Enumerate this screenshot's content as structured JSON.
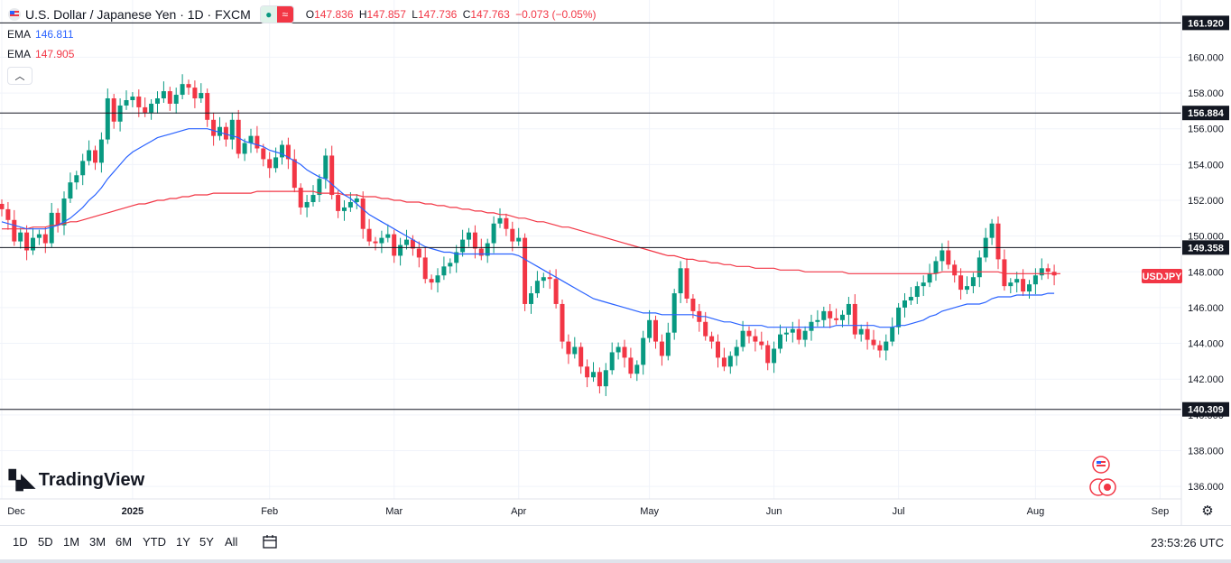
{
  "header": {
    "title": "U.S. Dollar / Japanese Yen · 1D · FXCM",
    "ohlc": [
      {
        "k": "O",
        "v": "147.836"
      },
      {
        "k": "H",
        "v": "147.857"
      },
      {
        "k": "L",
        "v": "147.736"
      },
      {
        "k": "C",
        "v": "147.763"
      }
    ],
    "change": "−0.073 (−0.05%)"
  },
  "indicators": [
    {
      "label": "EMA",
      "value": "146.811",
      "color": "#2962ff"
    },
    {
      "label": "EMA",
      "value": "147.905",
      "color": "#f23645"
    }
  ],
  "logo": "TradingView",
  "bottom": {
    "ranges": [
      "1D",
      "5D",
      "1M",
      "3M",
      "6M",
      "YTD",
      "1Y",
      "5Y",
      "All"
    ],
    "time": "23:53:26 UTC"
  },
  "colors": {
    "up": "#089981",
    "down": "#f23645",
    "ema_fast": "#2962ff",
    "ema_slow": "#f23645",
    "grid": "#f0f3fa"
  },
  "chart_data": {
    "type": "candlestick",
    "symbol": "USDJPY",
    "last_price": "147.763",
    "ylim": [
      135.3,
      163.2
    ],
    "y_ticks": [
      "136.000",
      "138.000",
      "140.000",
      "142.000",
      "144.000",
      "146.000",
      "148.000",
      "150.000",
      "152.000",
      "154.000",
      "156.000",
      "158.000",
      "160.000"
    ],
    "x_ticks": [
      "Dec",
      "2025",
      "Feb",
      "Mar",
      "Apr",
      "May",
      "Jun",
      "Jul",
      "Aug",
      "Sep"
    ],
    "x_tick_index": [
      0,
      21,
      43,
      63,
      83,
      104,
      124,
      144,
      166,
      186
    ],
    "horizontal_lines": [
      {
        "price": 161.92,
        "label": "161.920"
      },
      {
        "price": 156.884,
        "label": "156.884"
      },
      {
        "price": 149.358,
        "label": "149.358"
      },
      {
        "price": 140.309,
        "label": "140.309"
      }
    ],
    "closes": [
      151.5,
      150.9,
      149.7,
      150.2,
      149.2,
      149.9,
      150.1,
      149.6,
      151.3,
      150.6,
      152.1,
      153.0,
      153.4,
      154.2,
      154.8,
      154.1,
      155.4,
      157.7,
      156.4,
      157.3,
      157.6,
      157.8,
      157.2,
      156.9,
      157.4,
      157.7,
      158.1,
      157.4,
      157.9,
      158.5,
      158.3,
      157.7,
      158.0,
      156.5,
      155.6,
      156.1,
      155.4,
      156.5,
      154.6,
      155.2,
      155.6,
      154.9,
      154.3,
      153.8,
      154.4,
      155.1,
      154.3,
      152.7,
      151.6,
      151.9,
      152.3,
      153.2,
      154.5,
      152.3,
      151.4,
      151.6,
      151.9,
      152.1,
      150.4,
      149.7,
      149.6,
      149.9,
      150.1,
      148.9,
      149.5,
      149.8,
      149.3,
      148.8,
      147.6,
      147.4,
      147.8,
      148.3,
      148.5,
      149.1,
      149.8,
      150.2,
      149.3,
      148.9,
      149.6,
      150.7,
      151.0,
      150.4,
      149.7,
      149.9,
      146.2,
      146.8,
      147.5,
      147.7,
      147.6,
      146.2,
      144.1,
      143.4,
      143.8,
      142.7,
      142.1,
      142.4,
      141.6,
      142.5,
      143.5,
      143.8,
      143.2,
      142.3,
      142.8,
      144.3,
      145.3,
      144.1,
      143.3,
      144.6,
      146.8,
      148.2,
      146.5,
      145.8,
      145.2,
      144.4,
      144.1,
      143.2,
      142.7,
      143.3,
      143.8,
      144.7,
      144.4,
      144.1,
      143.9,
      142.9,
      143.7,
      144.5,
      144.6,
      144.8,
      144.2,
      144.7,
      145.2,
      145.3,
      145.8,
      145.4,
      145.3,
      145.6,
      146.2,
      144.5,
      144.8,
      144.2,
      143.9,
      143.6,
      144.1,
      144.9,
      146.0,
      146.4,
      146.6,
      147.2,
      147.4,
      147.9,
      148.6,
      149.2,
      148.4,
      147.8,
      147.0,
      147.2,
      147.7,
      148.8,
      149.9,
      150.7,
      148.7,
      147.2,
      147.4,
      147.6,
      146.9,
      147.3,
      147.8,
      148.2,
      148.0,
      147.8
    ],
    "ema_fast": [
      150.8,
      150.7,
      150.6,
      150.5,
      150.4,
      150.4,
      150.4,
      150.4,
      150.5,
      150.6,
      150.8,
      151.0,
      151.3,
      151.6,
      152.0,
      152.3,
      152.7,
      153.2,
      153.6,
      154.0,
      154.4,
      154.7,
      154.9,
      155.1,
      155.3,
      155.5,
      155.6,
      155.7,
      155.8,
      155.9,
      156.0,
      156.0,
      156.0,
      156.0,
      155.9,
      155.8,
      155.7,
      155.6,
      155.5,
      155.3,
      155.2,
      155.1,
      155.0,
      154.8,
      154.7,
      154.6,
      154.4,
      154.2,
      154.0,
      153.7,
      153.5,
      153.3,
      153.2,
      152.9,
      152.6,
      152.3,
      152.1,
      151.8,
      151.5,
      151.2,
      151.0,
      150.8,
      150.6,
      150.4,
      150.2,
      150.0,
      149.8,
      149.6,
      149.4,
      149.3,
      149.2,
      149.1,
      149.1,
      149.0,
      149.0,
      149.0,
      149.0,
      149.0,
      149.0,
      149.0,
      149.0,
      149.0,
      149.0,
      148.9,
      148.7,
      148.5,
      148.3,
      148.1,
      147.9,
      147.7,
      147.5,
      147.3,
      147.1,
      146.9,
      146.7,
      146.5,
      146.4,
      146.3,
      146.2,
      146.1,
      146.0,
      145.9,
      145.8,
      145.7,
      145.7,
      145.7,
      145.6,
      145.6,
      145.6,
      145.6,
      145.6,
      145.6,
      145.5,
      145.5,
      145.4,
      145.3,
      145.2,
      145.2,
      145.1,
      145.0,
      145.0,
      145.0,
      145.0,
      144.9,
      144.9,
      144.9,
      144.9,
      144.9,
      144.9,
      144.9,
      144.9,
      144.9,
      144.9,
      144.9,
      145.0,
      145.0,
      145.0,
      145.0,
      145.0,
      145.0,
      145.0,
      144.9,
      144.9,
      144.9,
      145.0,
      145.0,
      145.1,
      145.2,
      145.3,
      145.5,
      145.6,
      145.8,
      145.9,
      146.0,
      146.1,
      146.2,
      146.2,
      146.2,
      146.3,
      146.5,
      146.6,
      146.6,
      146.6,
      146.7,
      146.7,
      146.7,
      146.7,
      146.7,
      146.8,
      146.8
    ],
    "ema_slow": [
      150.4,
      150.4,
      150.4,
      150.4,
      150.4,
      150.5,
      150.5,
      150.5,
      150.6,
      150.6,
      150.7,
      150.8,
      150.8,
      150.9,
      151.0,
      151.1,
      151.2,
      151.3,
      151.4,
      151.5,
      151.6,
      151.7,
      151.8,
      151.8,
      151.9,
      152.0,
      152.0,
      152.1,
      152.1,
      152.2,
      152.2,
      152.3,
      152.3,
      152.3,
      152.4,
      152.4,
      152.4,
      152.4,
      152.4,
      152.4,
      152.4,
      152.5,
      152.5,
      152.5,
      152.5,
      152.5,
      152.5,
      152.5,
      152.5,
      152.5,
      152.5,
      152.4,
      152.4,
      152.4,
      152.4,
      152.3,
      152.3,
      152.3,
      152.2,
      152.2,
      152.2,
      152.1,
      152.1,
      152.0,
      152.0,
      151.9,
      151.9,
      151.9,
      151.8,
      151.8,
      151.7,
      151.7,
      151.6,
      151.6,
      151.5,
      151.5,
      151.4,
      151.4,
      151.3,
      151.3,
      151.2,
      151.2,
      151.1,
      151.0,
      151.0,
      150.9,
      150.8,
      150.8,
      150.7,
      150.6,
      150.5,
      150.5,
      150.4,
      150.3,
      150.2,
      150.1,
      150.0,
      149.9,
      149.8,
      149.7,
      149.6,
      149.5,
      149.4,
      149.3,
      149.2,
      149.1,
      149.0,
      148.9,
      148.9,
      148.8,
      148.7,
      148.7,
      148.6,
      148.6,
      148.5,
      148.5,
      148.4,
      148.4,
      148.3,
      148.3,
      148.3,
      148.2,
      148.2,
      148.2,
      148.2,
      148.1,
      148.1,
      148.1,
      148.1,
      148.0,
      148.0,
      148.0,
      148.0,
      148.0,
      148.0,
      148.0,
      147.9,
      147.9,
      147.9,
      147.9,
      147.9,
      147.9,
      147.9,
      147.9,
      147.9,
      147.9,
      147.9,
      147.9,
      147.9,
      147.9,
      147.9,
      148.0,
      148.0,
      148.0,
      148.0,
      148.0,
      148.0,
      148.0,
      148.0,
      148.0,
      148.0,
      147.9,
      147.9,
      147.9,
      147.9,
      147.9,
      147.9,
      147.9,
      147.9,
      147.9,
      147.9
    ]
  }
}
